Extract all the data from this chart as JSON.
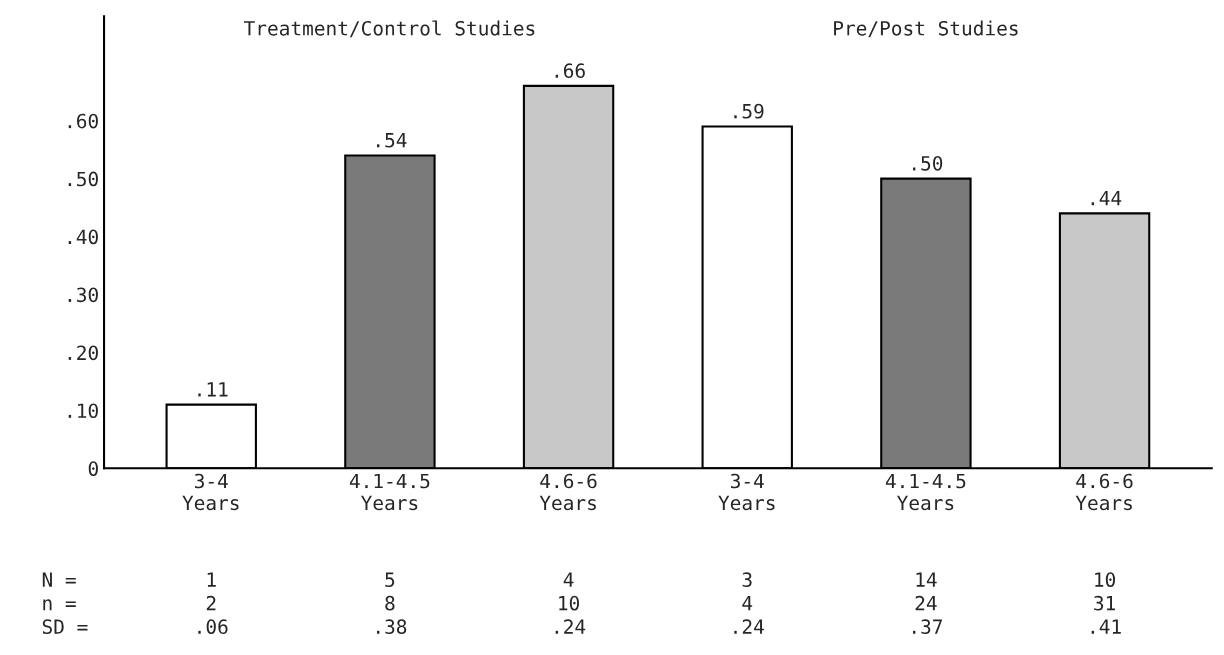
{
  "chart_data": {
    "type": "bar",
    "categories": [
      "3-4\nYears",
      "4.1-4.5\nYears",
      "4.6-6\nYears",
      "3-4\nYears",
      "4.1-4.5\nYears",
      "4.6-6\nYears"
    ],
    "values": [
      0.11,
      0.54,
      0.66,
      0.59,
      0.5,
      0.44
    ],
    "colors": [
      "#ffffff",
      "#7a7a7a",
      "#c8c8c8",
      "#ffffff",
      "#7a7a7a",
      "#c8c8c8"
    ],
    "value_labels": [
      ".11",
      ".54",
      ".66",
      ".59",
      ".50",
      ".44"
    ],
    "ylim": [
      0,
      0.78
    ],
    "yticks": [
      0,
      {
        "value": 0.1,
        "label": ".10"
      },
      {
        "value": 0.2,
        "label": ".20"
      },
      {
        "value": 0.3,
        "label": ".30"
      },
      {
        "value": 0.4,
        "label": ".40"
      },
      {
        "value": 0.5,
        "label": ".50"
      },
      {
        "value": 0.6,
        "label": ".60"
      }
    ],
    "grid": false,
    "annotations": [
      "Treatment/Control Studies",
      "Pre/Post Studies",
      "N =",
      "1",
      "5",
      "4",
      "3",
      "14",
      "10",
      "n =",
      "2",
      "8",
      "10",
      "4",
      "24",
      "31",
      "SD =",
      ".06",
      ".38",
      ".24",
      ".24",
      ".37",
      ".41"
    ]
  }
}
